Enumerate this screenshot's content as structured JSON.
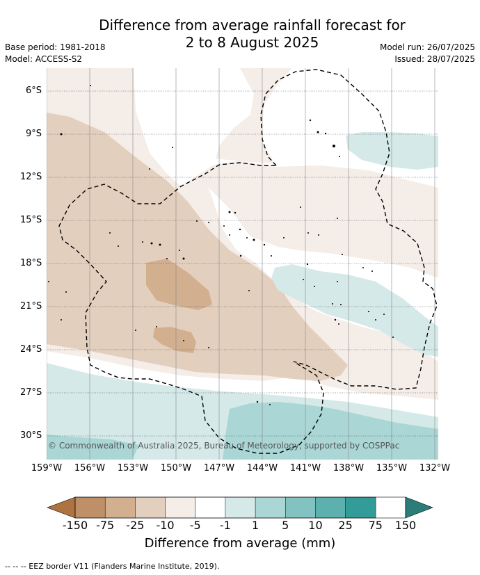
{
  "title_line1": "Difference from average rainfall forecast for",
  "title_line2": "2 to 8 August 2025",
  "base_period": "Base period: 1981-2018",
  "model": "Model: ACCESS-S2",
  "model_run": "Model run: 26/07/2025",
  "issued": "Issued: 28/07/2025",
  "lat_labels": [
    "6°S",
    "9°S",
    "12°S",
    "15°S",
    "18°S",
    "21°S",
    "24°S",
    "27°S",
    "30°S"
  ],
  "lon_labels": [
    "159°W",
    "156°W",
    "153°W",
    "150°W",
    "147°W",
    "144°W",
    "141°W",
    "138°W",
    "135°W",
    "132°W"
  ],
  "copyright": "© Commonwealth of Australia 2025, Bureau of Meteorology, supported by COSPPac",
  "colorbar": {
    "labels": [
      "-150",
      "-75",
      "-25",
      "-10",
      "-5",
      "-1",
      "1",
      "5",
      "10",
      "25",
      "75",
      "150"
    ],
    "colors": [
      "#ad7442",
      "#bf9068",
      "#d2af8f",
      "#e3cfbd",
      "#f4ede8",
      "#ffffff",
      "#d4e9e8",
      "#aad6d5",
      "#82c3c1",
      "#5cb0ad",
      "#349c98",
      "#2a7d79"
    ],
    "title": "Difference from average (mm)"
  },
  "footnote": "-- -- -- EEZ border V11 (Flanders Marine Institute, 2019)."
}
